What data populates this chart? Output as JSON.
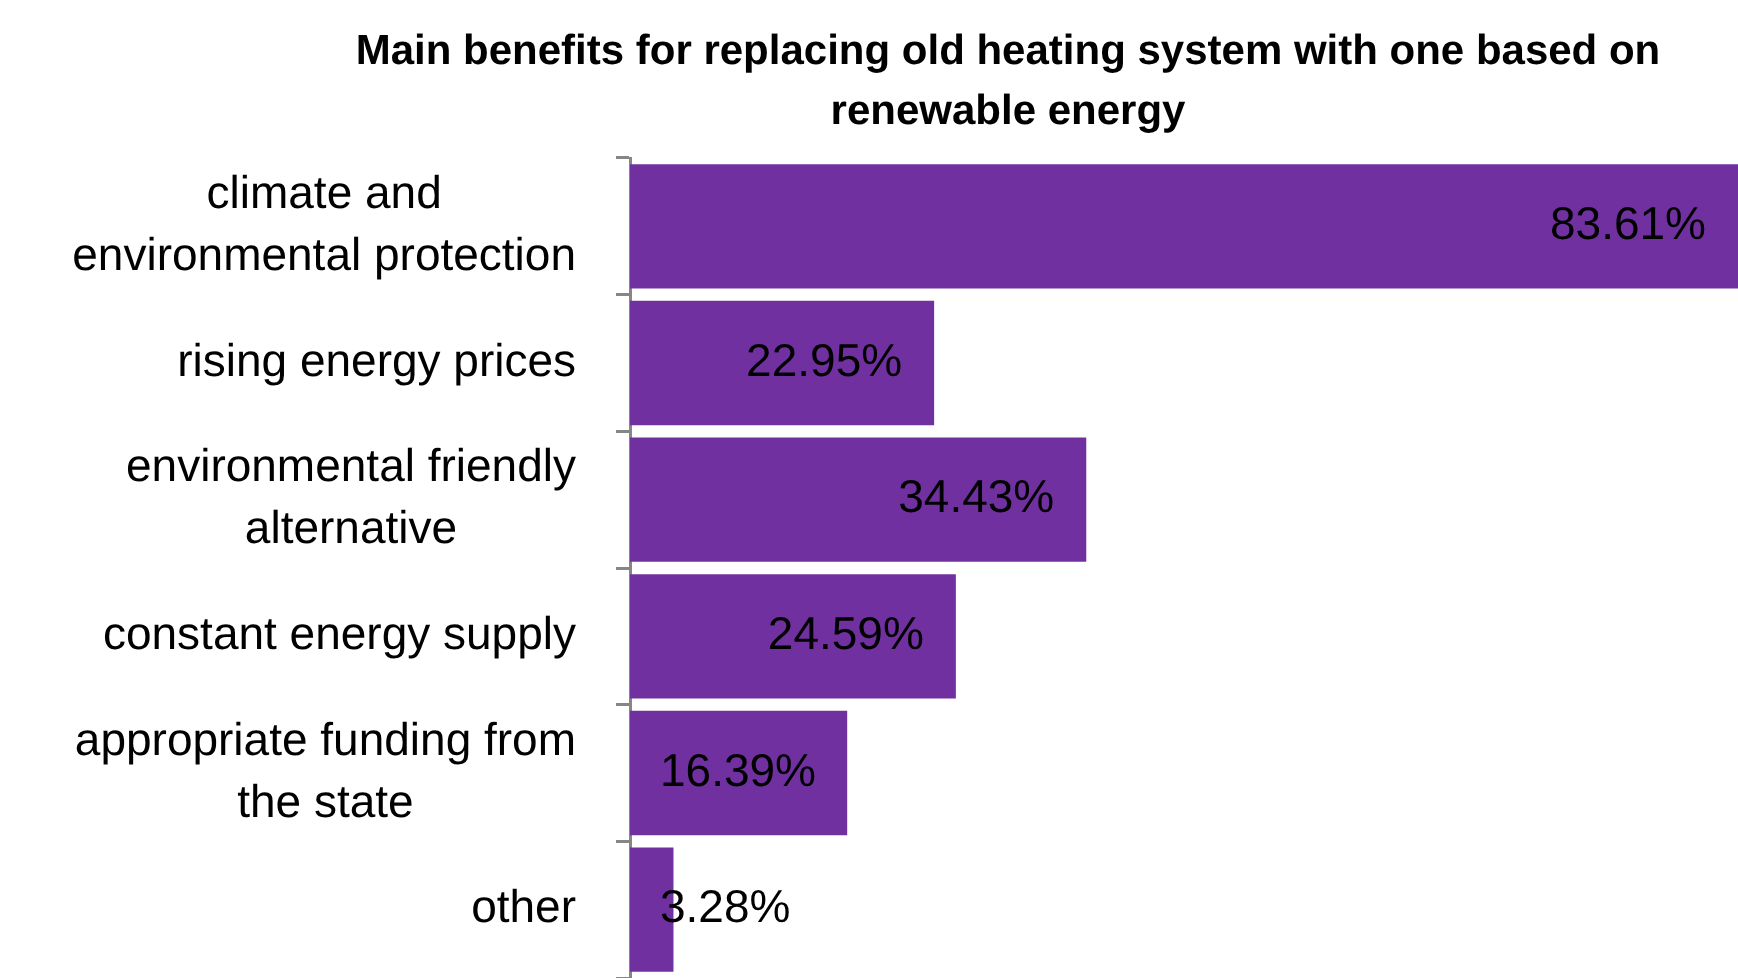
{
  "chart_data": {
    "type": "bar",
    "orientation": "horizontal",
    "title": "Main benefits for replacing old heating system with one based on renewable energy",
    "categories": [
      "climate and environmental protection",
      "rising energy prices",
      "environmental friendly alternative",
      "constant energy supply",
      "appropriate funding from the state",
      "other"
    ],
    "values": [
      83.61,
      22.95,
      34.43,
      24.59,
      16.39,
      3.28
    ],
    "value_labels": [
      "83.61%",
      "22.95%",
      "34.43%",
      "24.59%",
      "16.39%",
      "3.28%"
    ],
    "color": "#7030a0"
  }
}
